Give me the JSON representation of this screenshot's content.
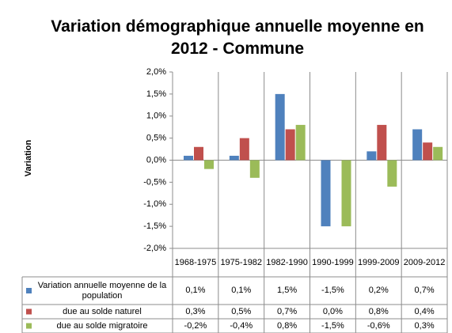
{
  "chart_data": {
    "type": "bar",
    "title": "Variation démographique annuelle moyenne en 2012 - Commune",
    "ylabel": "Variation",
    "categories": [
      "1968-1975",
      "1975-1982",
      "1982-1990",
      "1990-1999",
      "1999-2009",
      "2009-2012"
    ],
    "series": [
      {
        "name": "Variation annuelle moyenne de la population",
        "color": "#4f81bd",
        "values": [
          0.1,
          0.1,
          1.5,
          -1.5,
          0.2,
          0.7
        ],
        "value_labels": [
          "0,1%",
          "0,1%",
          "1,5%",
          "-1,5%",
          "0,2%",
          "0,7%"
        ]
      },
      {
        "name": "due au solde naturel",
        "color": "#c0504d",
        "values": [
          0.3,
          0.5,
          0.7,
          0.0,
          0.8,
          0.4
        ],
        "value_labels": [
          "0,3%",
          "0,5%",
          "0,7%",
          "0,0%",
          "0,8%",
          "0,4%"
        ]
      },
      {
        "name": "due au solde migratoire",
        "color": "#9bbb59",
        "values": [
          -0.2,
          -0.4,
          0.8,
          -1.5,
          -0.6,
          0.3
        ],
        "value_labels": [
          "-0,2%",
          "-0,4%",
          "0,8%",
          "-1,5%",
          "-0,6%",
          "0,3%"
        ]
      }
    ],
    "ylim": [
      -2,
      2
    ],
    "yticks": [
      {
        "value": 2,
        "label": "2,0%"
      },
      {
        "value": 1.5,
        "label": "1,5%"
      },
      {
        "value": 1,
        "label": "1,0%"
      },
      {
        "value": 0.5,
        "label": "0,5%"
      },
      {
        "value": 0,
        "label": "0,0%"
      },
      {
        "value": -0.5,
        "label": "-0,5%"
      },
      {
        "value": -1,
        "label": "-1,0%"
      },
      {
        "value": -1.5,
        "label": "-1,5%"
      },
      {
        "value": -2,
        "label": "-2,0%"
      }
    ],
    "grid": false
  }
}
